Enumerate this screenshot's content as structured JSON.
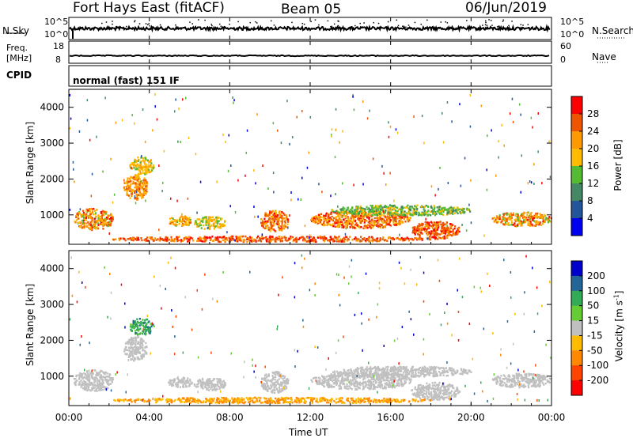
{
  "header": {
    "radar": "Fort Hays East (fitACF)",
    "beam": "Beam 05",
    "date": "06/Jun/2019"
  },
  "noise_panel": {
    "left_label": "N.Sky",
    "right_label": "N.Search",
    "left_ticks": [
      "10^5",
      "10^0"
    ],
    "right_ticks": [
      "10^5",
      "10^0"
    ]
  },
  "freq_panel": {
    "left_label_1": "Freq.",
    "left_label_2": "[MHz]",
    "right_label": "Nave",
    "left_ticks": [
      "18",
      "8"
    ],
    "right_ticks": [
      "60",
      "0"
    ]
  },
  "cpid_panel": {
    "label": "CPID",
    "text": "normal (fast) 151 IF"
  },
  "chart_data": [
    {
      "type": "heatmap",
      "name": "power",
      "ylabel": "Slant Range [km]",
      "y_ticks": [
        "4000",
        "3000",
        "2000",
        "1000"
      ],
      "ylim": [
        180,
        4500
      ],
      "colorbar_label": "Power [dB]",
      "colorbar_ticks": [
        "28",
        "24",
        "20",
        "16",
        "12",
        "8",
        "4"
      ],
      "colorbar_colors": [
        "#ff0000",
        "#ee5500",
        "#ff9900",
        "#ffbb00",
        "#55bb33",
        "#448866",
        "#225599",
        "#0000ee"
      ]
    },
    {
      "type": "heatmap",
      "name": "velocity",
      "ylabel": "Slant Range [km]",
      "y_ticks": [
        "4000",
        "3000",
        "2000",
        "1000"
      ],
      "ylim": [
        180,
        4500
      ],
      "colorbar_label": "Velocity [m s",
      "colorbar_label_sup": "-1",
      "colorbar_label_end": "]",
      "colorbar_ticks": [
        "200",
        "100",
        "50",
        "15",
        "-15",
        "-50",
        "-100",
        "-200"
      ],
      "colorbar_colors": [
        "#0000cc",
        "#226699",
        "#33aa55",
        "#66cc33",
        "#c0c0c0",
        "#ffbb00",
        "#ff8800",
        "#ff4400",
        "#ff0000"
      ]
    }
  ],
  "x_axis": {
    "label": "Time UT",
    "ticks": [
      "00:00",
      "04:00",
      "08:00",
      "12:00",
      "16:00",
      "20:00",
      "00:00"
    ]
  }
}
